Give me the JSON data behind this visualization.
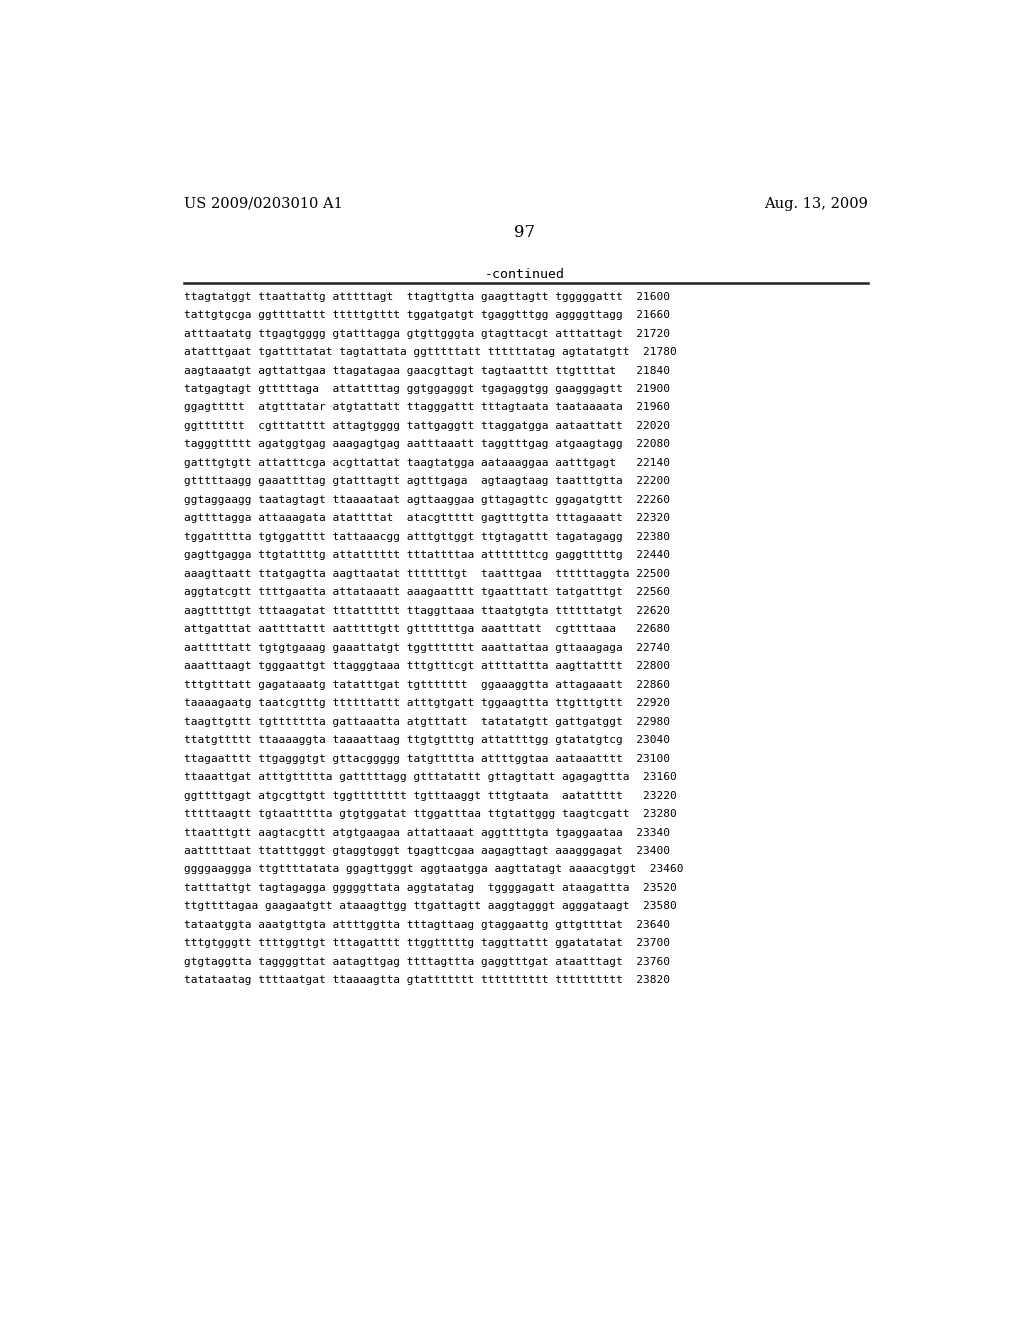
{
  "header_left": "US 2009/0203010 A1",
  "header_right": "Aug. 13, 2009",
  "page_number": "97",
  "continued_label": "-continued",
  "background_color": "#ffffff",
  "text_color": "#000000",
  "sequence_lines": [
    "ttagtatggt ttaattattg atttttagt  ttagttgtta gaagttagtt tgggggattt  21600",
    "tattgtgcga ggttttattt tttttgtttt tggatgatgt tgaggtttgg aggggttagg  21660",
    "atttaatatg ttgagtgggg gtatttagga gtgttgggta gtagttacgt atttattagt  21720",
    "atatttgaat tgattttatat tagtattata ggtttttatt ttttttatag agtatatgtt  21780",
    "aagtaaatgt agttattgaa ttagatagaa gaacgttagt tagtaatttt ttgttttat   21840",
    "tatgagtagt gtttttaga  attattttag ggtggagggt tgagaggtgg gaagggagtt  21900",
    "ggagttttt  atgtttatar atgtattatt ttagggattt tttagtaata taataaaata  21960",
    "ggttttttt  cgtttatttt attagtgggg tattgaggtt ttaggatgga aataattatt  22020",
    "tagggttttt agatggtgag aaagagtgag aatttaaatt taggtttgag atgaagtagg  22080",
    "gatttgtgtt attatttcga acgttattat taagtatgga aataaaggaa aatttgagt   22140",
    "gtttttaagg gaaattttag gtatttagtt agtttgaga  agtaagtaag taatttgtta  22200",
    "ggtaggaagg taatagtagt ttaaaataat agttaaggaa gttagagttc ggagatgttt  22260",
    "agttttagga attaaagata atattttat  atacgttttt gagtttgtta tttagaaatt  22320",
    "tggattttta tgtggatttt tattaaacgg atttgttggt ttgtagattt tagatagagg  22380",
    "gagttgagga ttgtattttg attatttttt tttattttaa atttttttcg gaggtttttg  22440",
    "aaagttaatt ttatgagtta aagttaatat tttttttgt  taatttgaa  ttttttaggta 22500",
    "aggtatcgtt ttttgaatta attataaatt aaagaatttt tgaatttatt tatgatttgt  22560",
    "aagtttttgt tttaagatat tttatttttt ttaggttaaa ttaatgtgta ttttttatgt  22620",
    "attgatttat aattttattt aatttttgtt gtttttttga aaatttatt  cgttttaaa   22680",
    "aatttttatt tgtgtgaaag gaaattatgt tggttttttt aaattattaa gttaaagaga  22740",
    "aaatttaagt tgggaattgt ttagggtaaa tttgtttcgt attttattta aagttatttt  22800",
    "tttgtttatt gagataaatg tatatttgat tgttttttt  ggaaaggtta attagaaatt  22860",
    "taaaagaatg taatcgtttg ttttttattt atttgtgatt tggaagttta ttgtttgttt  22920",
    "taagttgttt tgttttttta gattaaatta atgtttatt  tatatatgtt gattgatggt  22980",
    "ttatgttttt ttaaaaggta taaaattaag ttgtgttttg attattttgg gtatatgtcg  23040",
    "ttagaatttt ttgagggtgt gttacggggg tatgttttta attttggtaa aataaatttt  23100",
    "ttaaattgat atttgttttta gatttttagg gtttatattt gttagttatt agagagttta  23160",
    "ggttttgagt atgcgttgtt tggtttttttt tgtttaaggt tttgtaata  aatattttt   23220",
    "tttttaagtt tgtaattttta gtgtggatat ttggatttaa ttgtattggg taagtcgatt  23280",
    "ttaatttgtt aagtacgttt atgtgaagaa attattaaat aggttttgta tgaggaataa  23340",
    "aatttttaat ttatttgggt gtaggtgggt tgagttcgaa aagagttagt aaagggagat  23400",
    "ggggaaggga ttgttttatata ggagttgggt aggtaatgga aagttatagt aaaacgtggt  23460",
    "tatttattgt tagtagagga gggggttata aggtatatag  tggggagatt ataagattta  23520",
    "ttgttttagaa gaagaatgtt ataaagttgg ttgattagtt aaggtagggt agggataagt  23580",
    "tataatggta aaatgttgta attttggtta tttagttaag gtaggaattg gttgttttat  23640",
    "tttgtgggtt ttttggttgt tttagatttt ttggtttttg taggttattt ggatatatat  23700",
    "gtgtaggtta taggggttat aatagttgag ttttagttta gaggtttgat ataatttagt  23760",
    "tatataatag ttttaatgat ttaaaagtta gtattttttt tttttttttt tttttttttt  23820"
  ]
}
